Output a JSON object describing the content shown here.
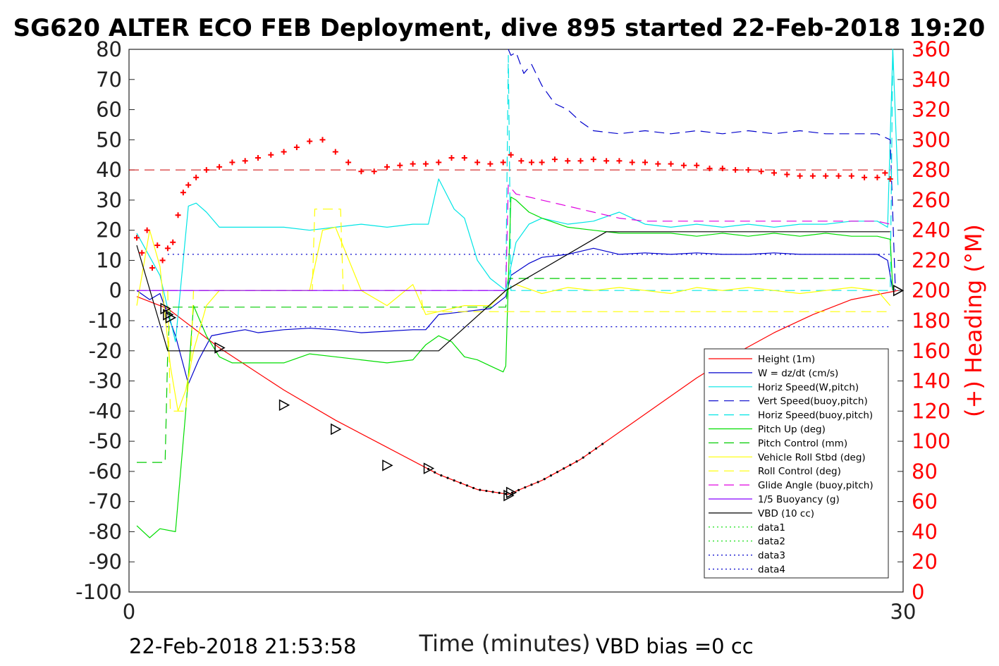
{
  "title": "SG620 ALTER ECO FEB Deployment, dive 895 started 22-Feb-2018 19:20",
  "footer": {
    "timestamp": "22-Feb-2018 21:53:58",
    "vbd_bias": "VBD bias =0 cc"
  },
  "chart_data": {
    "type": "line",
    "xlabel": "Time (minutes)",
    "ylabel_right": "(+) Heading (°M)",
    "xlim": [
      0,
      30
    ],
    "ylim": [
      -100,
      80
    ],
    "ylim_right": [
      0,
      360
    ],
    "x_ticks": [
      "0",
      "30"
    ],
    "y_ticks": [
      "80",
      "70",
      "60",
      "50",
      "40",
      "30",
      "20",
      "10",
      "0",
      "-10",
      "-20",
      "-30",
      "-40",
      "-50",
      "-60",
      "-70",
      "-80",
      "-90",
      "-100"
    ],
    "y_ticks_right": [
      "360",
      "340",
      "320",
      "300",
      "280",
      "260",
      "240",
      "220",
      "200",
      "180",
      "160",
      "140",
      "120",
      "100",
      "80",
      "60",
      "40",
      "20",
      "0"
    ],
    "legend_position": "lower-right",
    "series": [
      {
        "name": "Height (1m)",
        "color": "#ff0000",
        "style": "solid",
        "x": [
          0.3,
          1.5,
          3.5,
          6.0,
          8.0,
          10.0,
          12.0,
          13.5,
          14.7,
          16.0,
          17.5,
          19.0,
          20.5,
          22.0,
          23.5,
          25.0,
          26.5,
          28.0,
          29.8
        ],
        "y": [
          -2,
          -6,
          -19,
          -33,
          -43,
          -52,
          -61,
          -66,
          -67.6,
          -63,
          -56,
          -47,
          -38,
          -29,
          -21,
          -14,
          -8,
          -3,
          0
        ]
      },
      {
        "name": "W = dz/dt (cm/s)",
        "color": "#0000cc",
        "style": "solid",
        "x": [
          0.3,
          0.8,
          1.2,
          1.8,
          2.3,
          2.7,
          3.2,
          3.8,
          4.5,
          5.0,
          6,
          7,
          8,
          9,
          10,
          11,
          11.5,
          12,
          13,
          14,
          14.6,
          14.8,
          15.5,
          16,
          17,
          18,
          19,
          20,
          21,
          22,
          23,
          24,
          25,
          26,
          27,
          28,
          29,
          29.4,
          29.6
        ],
        "y": [
          0,
          -3,
          -1,
          -15,
          -31,
          -23,
          -15,
          -14,
          -13,
          -14,
          -13,
          -12.5,
          -13,
          -14,
          -13.5,
          -13,
          -13,
          -8,
          -7,
          -6,
          -2,
          5,
          9,
          11,
          12,
          14,
          12,
          12.5,
          12,
          12.5,
          12,
          12,
          12.5,
          12,
          12,
          12,
          12,
          10,
          0
        ]
      },
      {
        "name": "Horiz Speed(W,pitch)",
        "color": "#00e5e5",
        "style": "solid",
        "x": [
          0.3,
          1.2,
          1.8,
          2.3,
          2.6,
          3.0,
          3.5,
          4,
          5,
          6,
          7,
          8,
          9,
          10,
          11,
          11.6,
          12,
          12.6,
          13,
          13.5,
          14,
          14.6,
          15,
          15.5,
          16,
          17,
          18,
          19,
          20,
          21,
          22,
          23,
          24,
          25,
          26,
          27,
          28,
          29,
          29.4,
          29.6,
          29.8
        ],
        "y": [
          19,
          5,
          -17,
          28,
          29,
          26,
          21,
          21,
          21,
          21,
          20,
          21,
          22,
          21,
          22,
          22,
          37,
          27,
          24,
          10,
          4,
          0,
          16,
          22,
          24,
          22,
          23,
          26,
          22,
          21,
          22,
          21,
          22,
          21,
          22,
          22,
          23,
          23,
          21,
          80,
          35
        ]
      },
      {
        "name": "Vert Speed(buoy,pitch)",
        "color": "#0000cc",
        "style": "dash",
        "x": [
          14.7,
          14.8,
          15.0,
          15.3,
          15.6,
          16.0,
          16.5,
          17,
          17.5,
          18,
          19,
          20,
          21,
          22,
          23,
          24,
          25,
          26,
          27,
          28,
          29,
          29.5,
          29.7
        ],
        "y": [
          80,
          78,
          79,
          72,
          75,
          68,
          62,
          60,
          56,
          53,
          52,
          53,
          52,
          53,
          52,
          53,
          52,
          53,
          52,
          52,
          52,
          50,
          0
        ]
      },
      {
        "name": "Horiz Speed(buoy,pitch)",
        "color": "#00e5e5",
        "style": "dash",
        "x": [
          14.6,
          14.7,
          14.8,
          29.5,
          29.6
        ],
        "y": [
          0,
          78,
          0,
          0,
          80
        ]
      },
      {
        "name": "Pitch Up (deg)",
        "color": "#00dd00",
        "style": "solid",
        "x": [
          0.3,
          0.8,
          1.2,
          1.8,
          2.2,
          2.5,
          3.0,
          3.5,
          4,
          5,
          6,
          7,
          8,
          9,
          10,
          11,
          11.5,
          12,
          12.5,
          13,
          13.5,
          14,
          14.5,
          14.6,
          14.8,
          15,
          15.5,
          16,
          17,
          18,
          19,
          20,
          21,
          22,
          23,
          24,
          25,
          26,
          27,
          28,
          29,
          29.5,
          29.6
        ],
        "y": [
          -78,
          -82,
          -79,
          -80,
          -40,
          -5,
          -15,
          -22,
          -24,
          -24,
          -24,
          -21,
          -22,
          -23,
          -24,
          -23,
          -18,
          -15,
          -17,
          -22,
          -23,
          -25,
          -27,
          -25,
          31,
          30,
          26,
          24,
          21,
          20,
          19,
          19,
          19,
          18,
          19,
          18,
          19,
          18,
          19,
          18,
          18,
          17,
          0
        ]
      },
      {
        "name": "Pitch Control (mm)",
        "color": "#00cc00",
        "style": "dash",
        "x": [
          0.3,
          1.4,
          1.5,
          1.6,
          14.6,
          14.7,
          29.5
        ],
        "y": [
          -57,
          -57,
          -20,
          -5.5,
          -5.5,
          4,
          4
        ]
      },
      {
        "name": "Vehicle Roll Stbd (deg)",
        "color": "#ffff00",
        "style": "solid",
        "x": [
          0.3,
          0.8,
          1.2,
          1.6,
          1.9,
          2.2,
          2.5,
          3.0,
          3.5,
          4,
          5,
          6,
          7,
          7.5,
          8,
          9,
          10,
          11,
          11.5,
          12,
          13,
          14,
          14.6,
          15,
          16,
          17,
          18,
          19,
          20,
          21,
          22,
          23,
          24,
          25,
          26,
          27,
          28,
          29,
          29.5
        ],
        "y": [
          -5,
          20,
          8,
          -25,
          -40,
          -33,
          -20,
          -5,
          0,
          0,
          0,
          0,
          0,
          20,
          21,
          0,
          -5,
          2,
          -8,
          -7,
          -5,
          -5,
          0,
          2,
          -1,
          1,
          0,
          1,
          0,
          -1,
          1,
          0,
          1,
          0,
          -1,
          0,
          1,
          0,
          -5
        ]
      },
      {
        "name": "Roll Control (deg)",
        "color": "#ffff00",
        "style": "dash",
        "x": [
          1.5,
          1.6,
          2.2,
          2.4,
          2.5,
          7.1,
          7.2,
          8.2,
          8.3,
          11.3,
          11.4,
          29.5
        ],
        "y": [
          0,
          -40,
          -40,
          -22,
          0,
          0,
          27,
          27,
          0,
          0,
          -7,
          -7
        ]
      },
      {
        "name": "Glide Angle (buoy,pitch)",
        "color": "#e000e0",
        "style": "dash",
        "x": [
          0.3,
          14.6,
          14.7,
          15.0,
          16,
          17,
          18,
          19,
          20,
          21,
          22,
          23,
          24,
          25,
          26,
          27,
          28,
          29,
          29.5
        ],
        "y": [
          0,
          0,
          35,
          32,
          30,
          28,
          26,
          24,
          23,
          23,
          23,
          23,
          23,
          23,
          23,
          23,
          23,
          23,
          22
        ]
      },
      {
        "name": "1/5 Buoyancy (g)",
        "color": "#8800ff",
        "style": "solid",
        "x": [
          0.3,
          14.6
        ],
        "y": [
          0,
          0
        ]
      },
      {
        "name": "VBD (10 cc)",
        "color": "#000000",
        "style": "solid",
        "x": [
          0.3,
          1.5,
          1.7,
          12.0,
          14.6,
          18.5,
          29.5
        ],
        "y": [
          15,
          -20,
          -20,
          -20,
          0,
          19.5,
          19.5
        ]
      },
      {
        "name": "data1",
        "color": "#00dd00",
        "style": "dot",
        "x": [],
        "y": []
      },
      {
        "name": "data2",
        "color": "#00dd00",
        "style": "dot",
        "x": [],
        "y": []
      },
      {
        "name": "data3",
        "color": "#0000cc",
        "style": "dot",
        "x": [
          1.5,
          29.5
        ],
        "y": [
          12,
          12
        ]
      },
      {
        "name": "data4",
        "color": "#0000cc",
        "style": "dot",
        "x": [
          0.5,
          29.5
        ],
        "y": [
          -12,
          -12
        ]
      }
    ],
    "heading_series": {
      "name": "Heading",
      "color": "#ff0000",
      "marker": "+",
      "x": [
        0.3,
        0.5,
        0.7,
        0.9,
        1.1,
        1.3,
        1.5,
        1.7,
        1.9,
        2.1,
        2.3,
        2.6,
        3.0,
        3.5,
        4,
        4.5,
        5,
        5.5,
        6,
        6.5,
        7,
        7.5,
        8,
        8.5,
        9,
        9.5,
        10,
        10.5,
        11,
        11.5,
        12,
        12.5,
        13,
        13.5,
        14,
        14.5,
        14.8,
        15.2,
        15.6,
        16,
        16.5,
        17,
        17.5,
        18,
        18.5,
        19,
        19.5,
        20,
        20.5,
        21,
        21.5,
        22,
        22.5,
        23,
        23.5,
        24,
        24.5,
        25,
        25.5,
        26,
        26.5,
        27,
        27.5,
        28,
        28.5,
        29,
        29.3,
        29.5
      ],
      "y": [
        235,
        225,
        240,
        215,
        230,
        220,
        228,
        232,
        250,
        265,
        270,
        275,
        280,
        282,
        285,
        286,
        288,
        290,
        292,
        295,
        299,
        300,
        292,
        285,
        279,
        279,
        282,
        283,
        284,
        284,
        285,
        288,
        288,
        285,
        284,
        285,
        290,
        286,
        285,
        285,
        287,
        286,
        286,
        287,
        286,
        286,
        285,
        285,
        284,
        284,
        283,
        283,
        281,
        281,
        280,
        280,
        279,
        278,
        277,
        276,
        276,
        276,
        276,
        276,
        275,
        275,
        278,
        274
      ]
    },
    "markers": {
      "name": "triangles",
      "color": "#000000",
      "x": [
        1.4,
        1.5,
        1.6,
        3.5,
        6.0,
        8.0,
        10.0,
        11.6,
        14.7,
        14.8,
        29.8
      ],
      "y": [
        -6,
        -8,
        -9,
        -19,
        -38,
        -46,
        -58,
        -59,
        -68,
        -67,
        0
      ]
    },
    "reference_line": {
      "name": "heading-ref",
      "color": "#cc0000",
      "y_right": 280
    }
  },
  "legend": {
    "entries": [
      {
        "label": "Height (1m)",
        "color": "#ff0000",
        "style": "solid"
      },
      {
        "label": "W = dz/dt (cm/s)",
        "color": "#0000cc",
        "style": "solid"
      },
      {
        "label": "Horiz Speed(W,pitch)",
        "color": "#00e5e5",
        "style": "solid"
      },
      {
        "label": "Vert Speed(buoy,pitch)",
        "color": "#0000cc",
        "style": "dash"
      },
      {
        "label": "Horiz Speed(buoy,pitch)",
        "color": "#00e5e5",
        "style": "dash"
      },
      {
        "label": "Pitch Up (deg)",
        "color": "#00dd00",
        "style": "solid"
      },
      {
        "label": "Pitch Control (mm)",
        "color": "#00cc00",
        "style": "dash"
      },
      {
        "label": "Vehicle Roll Stbd (deg)",
        "color": "#ffff00",
        "style": "solid"
      },
      {
        "label": "Roll Control (deg)",
        "color": "#ffff00",
        "style": "dash"
      },
      {
        "label": "Glide Angle (buoy,pitch)",
        "color": "#e000e0",
        "style": "dash"
      },
      {
        "label": "1/5 Buoyancy (g)",
        "color": "#8800ff",
        "style": "solid"
      },
      {
        "label": "VBD (10 cc)",
        "color": "#000000",
        "style": "solid"
      },
      {
        "label": "data1",
        "color": "#00dd00",
        "style": "dot"
      },
      {
        "label": "data2",
        "color": "#00dd00",
        "style": "dot"
      },
      {
        "label": "data3",
        "color": "#0000cc",
        "style": "dot"
      },
      {
        "label": "data4",
        "color": "#0000cc",
        "style": "dot"
      }
    ]
  }
}
